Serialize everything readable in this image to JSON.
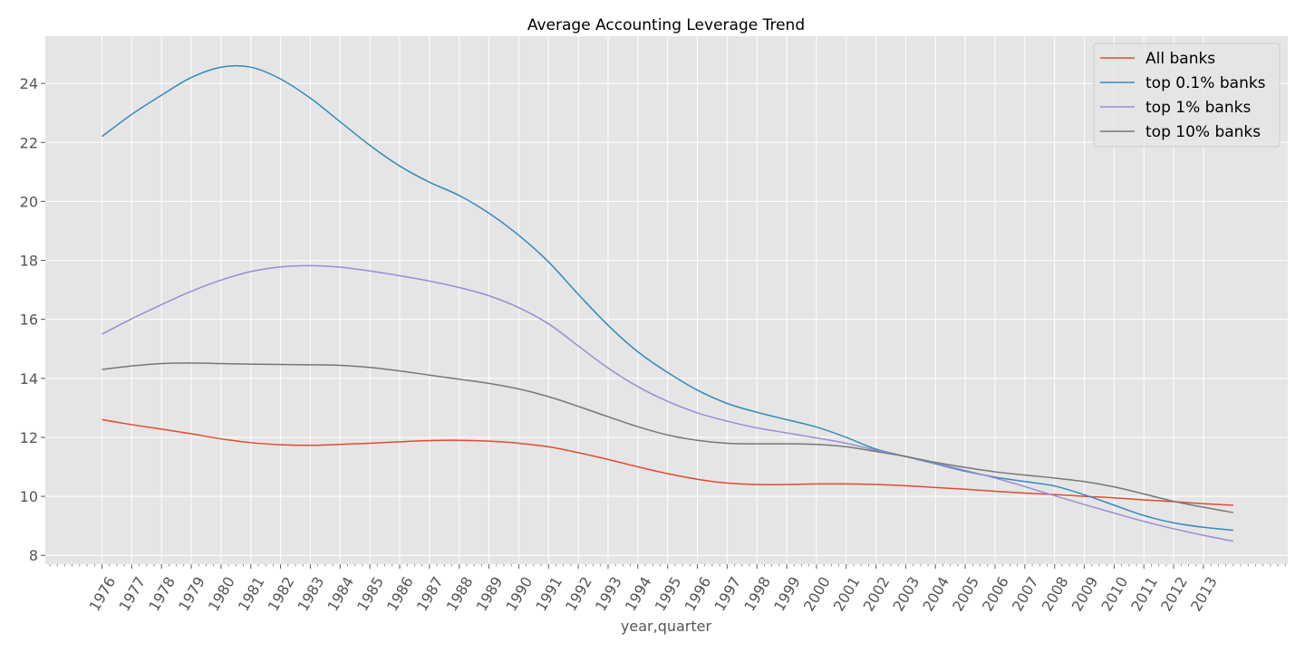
{
  "chart_data": {
    "type": "line",
    "title": "Average Accounting Leverage Trend",
    "xlabel": "year,quarter",
    "ylabel": "",
    "x": [
      1976,
      1977,
      1978,
      1979,
      1980,
      1981,
      1982,
      1983,
      1984,
      1985,
      1986,
      1987,
      1988,
      1989,
      1990,
      1991,
      1992,
      1993,
      1994,
      1995,
      1996,
      1997,
      1998,
      1999,
      2000,
      2001,
      2002,
      2003,
      2004,
      2005,
      2006,
      2007,
      2008,
      2009,
      2010,
      2011,
      2012,
      2013,
      2014
    ],
    "x_tick_labels": [
      "1976",
      "1977",
      "1978",
      "1979",
      "1980",
      "1981",
      "1982",
      "1983",
      "1984",
      "1985",
      "1986",
      "1987",
      "1988",
      "1989",
      "1990",
      "1991",
      "1992",
      "1993",
      "1994",
      "1995",
      "1996",
      "1997",
      "1998",
      "1999",
      "2000",
      "2001",
      "2002",
      "2003",
      "2004",
      "2005",
      "2006",
      "2007",
      "2008",
      "2009",
      "2010",
      "2011",
      "2012",
      "2013"
    ],
    "xlim": [
      1976,
      2014
    ],
    "ylim": [
      7.7,
      25.6
    ],
    "y_ticks": [
      8,
      10,
      12,
      14,
      16,
      18,
      20,
      22,
      24
    ],
    "grid": true,
    "legend_position": "top-right",
    "series": [
      {
        "name": "All banks",
        "color": "#E24A33",
        "values": [
          12.6,
          12.43,
          12.28,
          12.12,
          11.95,
          11.82,
          11.75,
          11.73,
          11.76,
          11.8,
          11.85,
          11.89,
          11.9,
          11.87,
          11.8,
          11.68,
          11.48,
          11.25,
          11.0,
          10.77,
          10.58,
          10.45,
          10.4,
          10.4,
          10.42,
          10.42,
          10.4,
          10.36,
          10.3,
          10.24,
          10.17,
          10.11,
          10.06,
          10.0,
          9.95,
          9.88,
          9.82,
          9.75,
          9.7
        ]
      },
      {
        "name": "top 0.1% banks",
        "color": "#348ABD",
        "values": [
          22.2,
          22.95,
          23.6,
          24.2,
          24.55,
          24.55,
          24.15,
          23.5,
          22.7,
          21.9,
          21.2,
          20.65,
          20.2,
          19.6,
          18.85,
          17.95,
          16.85,
          15.8,
          14.9,
          14.2,
          13.6,
          13.15,
          12.85,
          12.6,
          12.35,
          12.0,
          11.6,
          11.35,
          11.1,
          10.85,
          10.65,
          10.5,
          10.35,
          10.05,
          9.7,
          9.35,
          9.1,
          8.95,
          8.85
        ]
      },
      {
        "name": "top 1% banks",
        "color": "#988ED5",
        "values": [
          15.5,
          16.02,
          16.5,
          16.95,
          17.33,
          17.62,
          17.78,
          17.82,
          17.77,
          17.64,
          17.48,
          17.3,
          17.08,
          16.8,
          16.4,
          15.85,
          15.1,
          14.35,
          13.72,
          13.22,
          12.83,
          12.55,
          12.32,
          12.15,
          11.98,
          11.8,
          11.56,
          11.35,
          11.12,
          10.88,
          10.62,
          10.33,
          10.02,
          9.72,
          9.43,
          9.15,
          8.9,
          8.68,
          8.48
        ]
      },
      {
        "name": "top 10% banks",
        "color": "#777777",
        "values": [
          14.3,
          14.42,
          14.5,
          14.52,
          14.5,
          14.48,
          14.47,
          14.46,
          14.44,
          14.37,
          14.25,
          14.11,
          13.97,
          13.83,
          13.64,
          13.38,
          13.05,
          12.7,
          12.36,
          12.08,
          11.9,
          11.8,
          11.78,
          11.78,
          11.76,
          11.68,
          11.52,
          11.35,
          11.15,
          10.98,
          10.83,
          10.72,
          10.62,
          10.5,
          10.32,
          10.08,
          9.83,
          9.63,
          9.45
        ]
      }
    ]
  }
}
